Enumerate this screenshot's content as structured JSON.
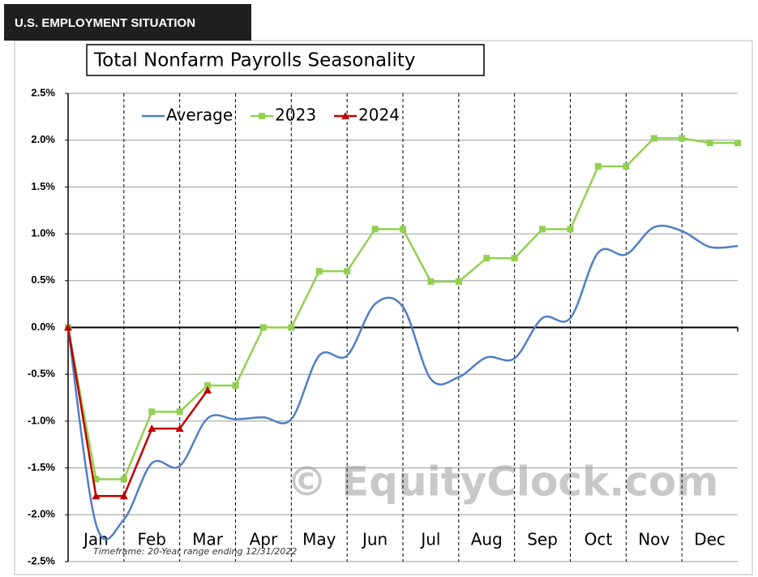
{
  "header": "U.S. EMPLOYMENT SITUATION",
  "chart_data": {
    "type": "line",
    "title": "Total Nonfarm Payrolls Seasonality",
    "footnote": "Timeframe: 20-Year range ending 12/31/2022",
    "watermark": "© EquityClock.com",
    "x": [
      0,
      0.5,
      1,
      1.5,
      2,
      2.5,
      3,
      3.5,
      4,
      4.5,
      5,
      5.5,
      6,
      6.5,
      7,
      7.5,
      8,
      8.5,
      9,
      9.5,
      10,
      10.5,
      11,
      11.5,
      12
    ],
    "xlim": [
      0,
      12
    ],
    "xticks": [
      {
        "value": 0.5,
        "label": "Jan"
      },
      {
        "value": 1.5,
        "label": "Feb"
      },
      {
        "value": 2.5,
        "label": "Mar"
      },
      {
        "value": 3.5,
        "label": "Apr"
      },
      {
        "value": 4.5,
        "label": "May"
      },
      {
        "value": 5.5,
        "label": "Jun"
      },
      {
        "value": 6.5,
        "label": "Jul"
      },
      {
        "value": 7.5,
        "label": "Aug"
      },
      {
        "value": 8.5,
        "label": "Sep"
      },
      {
        "value": 9.5,
        "label": "Oct"
      },
      {
        "value": 10.5,
        "label": "Nov"
      },
      {
        "value": 11.5,
        "label": "Dec"
      }
    ],
    "ylim": [
      -2.5,
      2.5
    ],
    "yticks": [
      {
        "value": -2.5,
        "label": "-2.5%"
      },
      {
        "value": -2,
        "label": "-2.0%"
      },
      {
        "value": -1.5,
        "label": "-1.5%"
      },
      {
        "value": -1,
        "label": "-1.0%"
      },
      {
        "value": -0.5,
        "label": "-0.5%"
      },
      {
        "value": 0,
        "label": "0.0%"
      },
      {
        "value": 0.5,
        "label": "0.5%"
      },
      {
        "value": 1,
        "label": "1.0%"
      },
      {
        "value": 1.5,
        "label": "1.5%"
      },
      {
        "value": 2,
        "label": "2.0%"
      },
      {
        "value": 2.5,
        "label": "2.5%"
      }
    ],
    "grid": true,
    "legend": "upper left",
    "series": [
      {
        "name": "Average",
        "color": "#4f7ec6",
        "smooth": true,
        "values": [
          0,
          -2.1,
          -2.05,
          -1.45,
          -1.48,
          -0.97,
          -0.98,
          -0.96,
          -0.98,
          -0.3,
          -0.3,
          0.25,
          0.22,
          -0.55,
          -0.53,
          -0.32,
          -0.33,
          0.1,
          0.1,
          0.8,
          0.78,
          1.07,
          1.03,
          0.86,
          0.87
        ]
      },
      {
        "name": "2023",
        "color": "#92d050",
        "marker": "square",
        "values": [
          0,
          -1.62,
          -1.62,
          -0.9,
          -0.9,
          -0.62,
          -0.62,
          0,
          0,
          0.6,
          0.6,
          1.05,
          1.05,
          0.49,
          0.49,
          0.74,
          0.74,
          1.05,
          1.05,
          1.72,
          1.72,
          2.02,
          2.02,
          1.97,
          1.97
        ]
      },
      {
        "name": "2024",
        "color": "#c00000",
        "marker": "triangle",
        "values": [
          0,
          -1.8,
          -1.8,
          -1.08,
          -1.08,
          -0.67,
          null,
          null,
          null,
          null,
          null,
          null,
          null,
          null,
          null,
          null,
          null,
          null,
          null,
          null,
          null,
          null,
          null,
          null,
          null
        ]
      }
    ]
  }
}
